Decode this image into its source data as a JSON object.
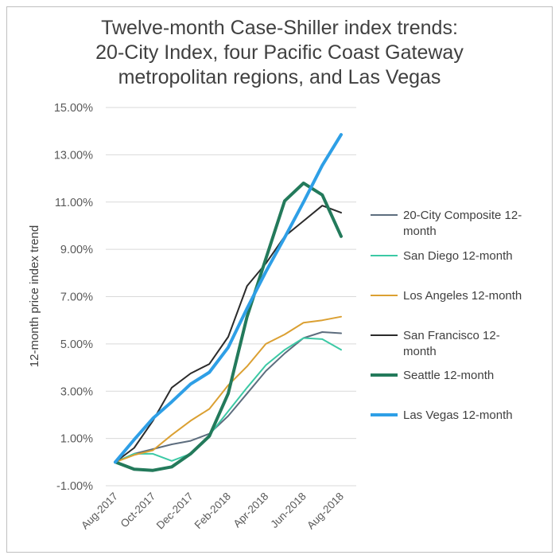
{
  "chart_data": {
    "type": "line",
    "title": [
      "Twelve-month Case-Shiller index trends:",
      "20-City Index, four Pacific Coast Gateway",
      "metropolitan regions, and Las Vegas"
    ],
    "ylabel": "12-month price index trend",
    "xlabel": "",
    "ylim": [
      -1,
      15
    ],
    "yticks": [
      -1,
      1,
      3,
      5,
      7,
      9,
      11,
      13,
      15
    ],
    "ytick_labels": [
      "-1.00%",
      "1.00%",
      "3.00%",
      "5.00%",
      "7.00%",
      "9.00%",
      "11.00%",
      "13.00%",
      "15.00%"
    ],
    "categories": [
      "Aug-2017",
      "Sep-2017",
      "Oct-2017",
      "Nov-2017",
      "Dec-2017",
      "Jan-2018",
      "Feb-2018",
      "Mar-2018",
      "Apr-2018",
      "May-2018",
      "Jun-2018",
      "Jul-2018",
      "Aug-2018"
    ],
    "xtick_labels": [
      "Aug-2017",
      "Oct-2017",
      "Dec-2017",
      "Feb-2018",
      "Apr-2018",
      "Jun-2018",
      "Aug-2018"
    ],
    "grid": "horizontal",
    "legend_position": "right",
    "series": [
      {
        "name": "20-City Composite 12-month",
        "color": "#5d6d7e",
        "width": 2,
        "values": [
          0.0,
          0.35,
          0.55,
          0.75,
          0.9,
          1.2,
          1.95,
          2.9,
          3.85,
          4.6,
          5.25,
          5.5,
          5.45
        ]
      },
      {
        "name": "San Diego 12-month",
        "color": "#3cc9a5",
        "width": 2,
        "values": [
          0.0,
          0.35,
          0.35,
          0.05,
          0.35,
          1.15,
          2.15,
          3.15,
          4.1,
          4.75,
          5.25,
          5.2,
          4.75
        ]
      },
      {
        "name": "Los Angeles 12-month",
        "color": "#dba032",
        "width": 2,
        "values": [
          0.0,
          0.3,
          0.5,
          1.15,
          1.75,
          2.25,
          3.25,
          4.05,
          5.0,
          5.4,
          5.9,
          6.0,
          6.15
        ]
      },
      {
        "name": "San Francisco 12-month",
        "color": "#2b2b2b",
        "width": 2,
        "values": [
          0.0,
          0.6,
          1.75,
          3.15,
          3.75,
          4.15,
          5.3,
          7.45,
          8.4,
          9.55,
          10.2,
          10.85,
          10.55
        ]
      },
      {
        "name": "Seattle 12-month",
        "color": "#237a5b",
        "width": 4,
        "values": [
          0.0,
          -0.3,
          -0.35,
          -0.2,
          0.35,
          1.1,
          2.9,
          6.15,
          8.6,
          11.05,
          11.8,
          11.3,
          9.55
        ]
      },
      {
        "name": "Las Vegas 12-month",
        "color": "#2e9fe6",
        "width": 4,
        "values": [
          0.0,
          0.95,
          1.85,
          2.55,
          3.3,
          3.8,
          4.85,
          6.5,
          8.05,
          9.5,
          11.0,
          12.55,
          13.85
        ]
      }
    ],
    "legend_labels": [
      [
        "20-City Composite 12-",
        "month"
      ],
      [
        "San Diego 12-month"
      ],
      [
        "Los Angeles 12-month"
      ],
      [
        "San Francisco 12-",
        "month"
      ],
      [
        "Seattle 12-month"
      ],
      [
        "Las Vegas 12-month"
      ]
    ]
  }
}
